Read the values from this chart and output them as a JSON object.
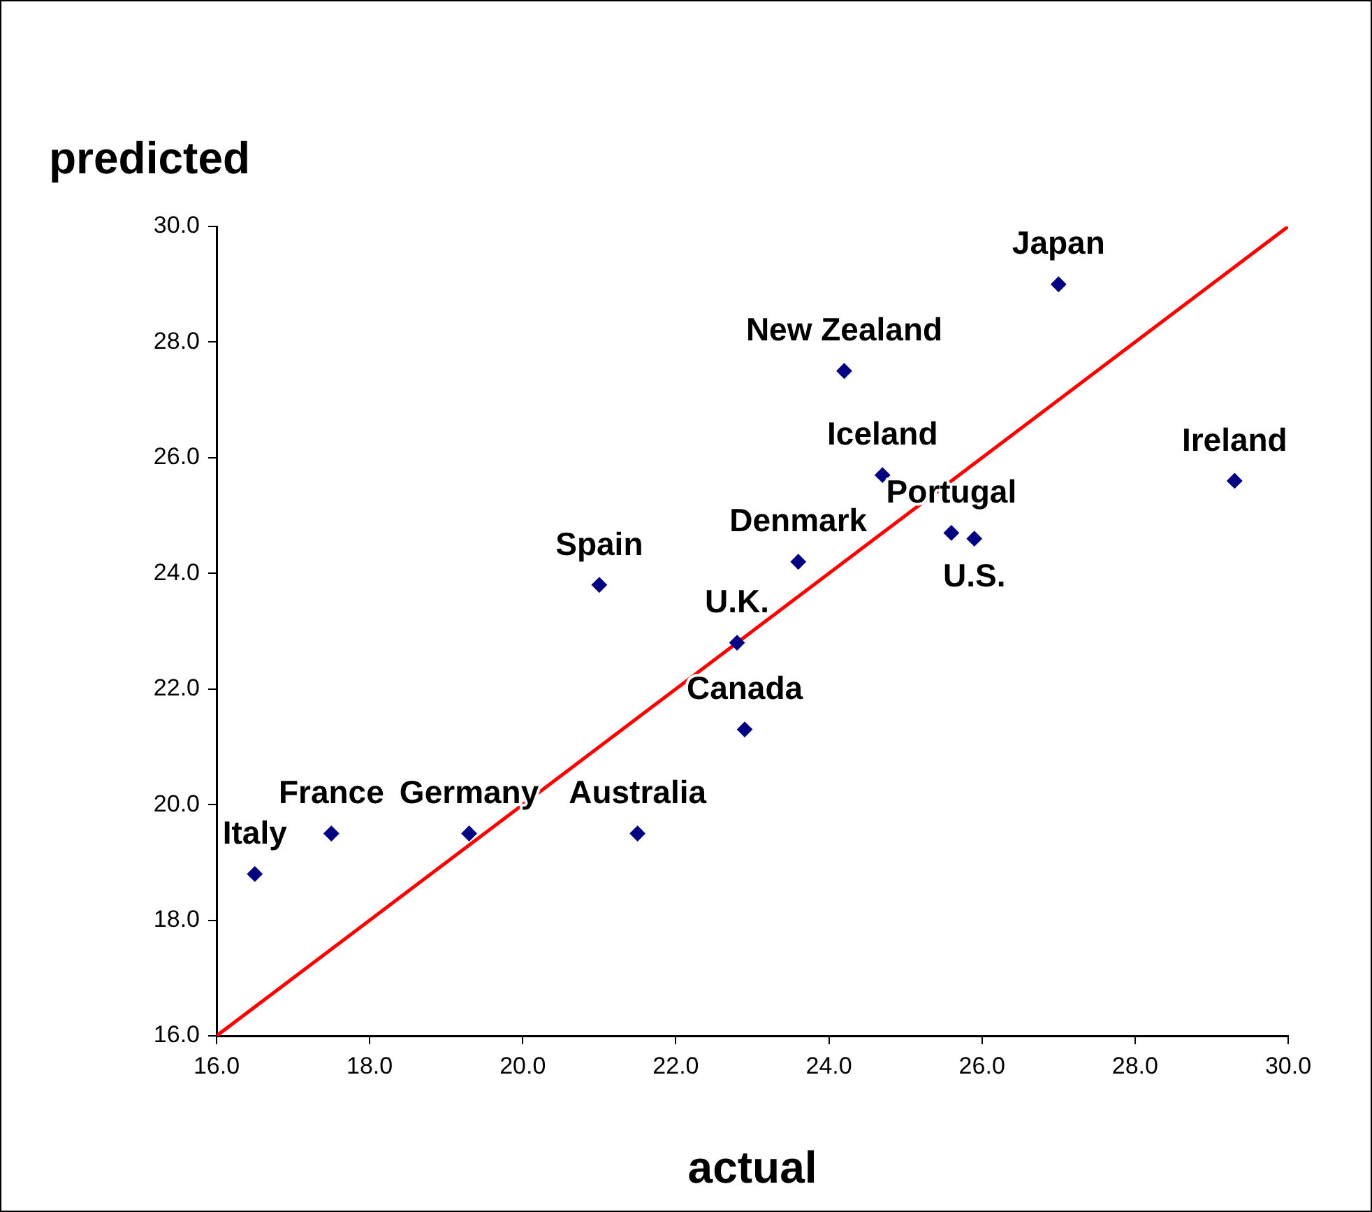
{
  "chart_data": {
    "type": "scatter",
    "xlabel": "actual",
    "ylabel": "predicted",
    "x": [
      16.5,
      17.5,
      19.3,
      21.5,
      22.9,
      22.8,
      21.0,
      23.6,
      24.2,
      24.7,
      25.6,
      25.9,
      27.0,
      29.3
    ],
    "series": [
      {
        "type": "scatter",
        "color": "#000080",
        "marker": "diamond",
        "values": [
          18.8,
          19.5,
          19.5,
          19.5,
          21.3,
          22.8,
          23.8,
          24.2,
          27.5,
          25.7,
          24.7,
          24.6,
          29.0,
          25.6
        ]
      },
      {
        "type": "line",
        "color": "#ff0000",
        "marker": "none",
        "x": [
          16,
          30
        ],
        "values": [
          16,
          30
        ]
      }
    ],
    "annotations": [
      {
        "text": "Italy",
        "x": 16.5,
        "y": 18.8
      },
      {
        "text": "France",
        "x": 17.5,
        "y": 19.5
      },
      {
        "text": "Germany",
        "x": 19.3,
        "y": 19.5
      },
      {
        "text": "Australia",
        "x": 21.5,
        "y": 19.5
      },
      {
        "text": "Canada",
        "x": 22.9,
        "y": 21.3
      },
      {
        "text": "U.K.",
        "x": 22.8,
        "y": 22.8
      },
      {
        "text": "Spain",
        "x": 21.0,
        "y": 23.8
      },
      {
        "text": "Denmark",
        "x": 23.6,
        "y": 24.2
      },
      {
        "text": "New Zealand",
        "x": 24.2,
        "y": 27.5
      },
      {
        "text": "Iceland",
        "x": 24.7,
        "y": 25.7
      },
      {
        "text": "Portugal",
        "x": 25.6,
        "y": 24.7
      },
      {
        "text": "U.S.",
        "x": 25.9,
        "y": 24.6
      },
      {
        "text": "Japan",
        "x": 27.0,
        "y": 29.0
      },
      {
        "text": "Ireland",
        "x": 29.3,
        "y": 25.6
      }
    ],
    "xlim": [
      16,
      30
    ],
    "ylim": [
      16,
      30
    ],
    "xticks": [
      {
        "value": 16,
        "label": "16.0"
      },
      {
        "value": 18,
        "label": "18.0"
      },
      {
        "value": 20,
        "label": "20.0"
      },
      {
        "value": 22,
        "label": "22.0"
      },
      {
        "value": 24,
        "label": "24.0"
      },
      {
        "value": 26,
        "label": "26.0"
      },
      {
        "value": 28,
        "label": "28.0"
      },
      {
        "value": 30,
        "label": "30.0"
      }
    ],
    "yticks": [
      {
        "value": 16,
        "label": "16.0"
      },
      {
        "value": 18,
        "label": "18.0"
      },
      {
        "value": 20,
        "label": "20.0"
      },
      {
        "value": 22,
        "label": "22.0"
      },
      {
        "value": 24,
        "label": "24.0"
      },
      {
        "value": 26,
        "label": "26.0"
      },
      {
        "value": 28,
        "label": "28.0"
      },
      {
        "value": 30,
        "label": "30.0"
      }
    ],
    "grid": false,
    "legend": false
  }
}
